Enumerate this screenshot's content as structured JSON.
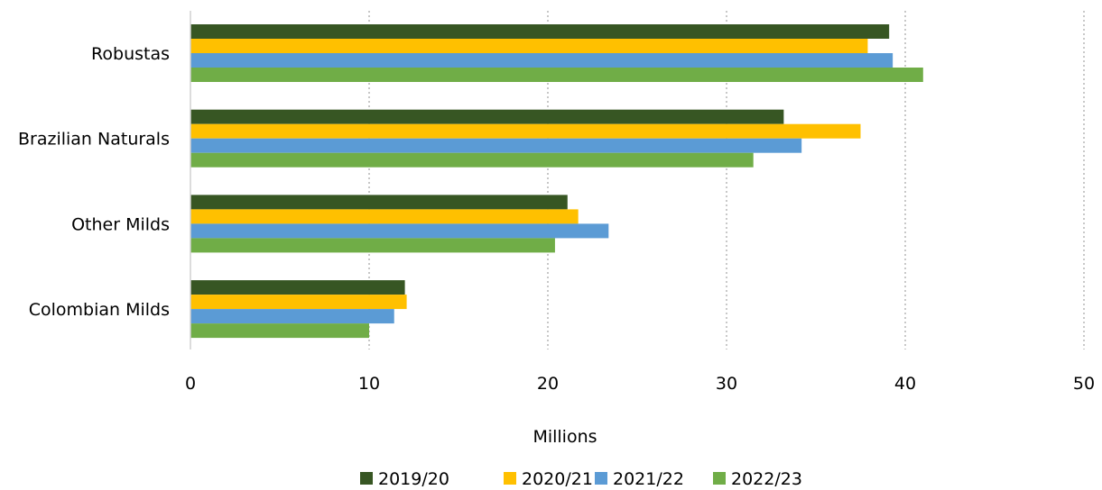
{
  "chart_data": {
    "type": "bar",
    "orientation": "horizontal",
    "categories": [
      "Robustas",
      "Brazilian Naturals",
      "Other Milds",
      "Colombian Milds"
    ],
    "series": [
      {
        "name": "2019/20",
        "color": "#375623",
        "values": [
          39.1,
          33.2,
          21.1,
          12.0
        ]
      },
      {
        "name": "2020/21",
        "color": "#FFC000",
        "values": [
          37.9,
          37.5,
          21.7,
          12.1
        ]
      },
      {
        "name": "2021/22",
        "color": "#5B9BD5",
        "values": [
          39.3,
          34.2,
          23.4,
          11.4
        ]
      },
      {
        "name": "2022/23",
        "color": "#70AD47",
        "values": [
          41.0,
          31.5,
          20.4,
          10.0
        ]
      }
    ],
    "xlabel": "Millions",
    "ylabel": "",
    "xlim": [
      0,
      50
    ],
    "xticks": [
      0,
      10,
      20,
      30,
      40,
      50
    ],
    "grid": "vertical-dotted",
    "legend": "bottom"
  }
}
